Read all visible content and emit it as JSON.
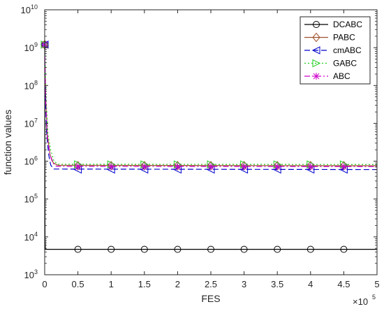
{
  "chart_data": {
    "type": "line",
    "xlabel": "FES",
    "ylabel": "function values",
    "x_multiplier_base": "×10",
    "x_multiplier_exp": "5",
    "xlim": [
      0,
      500000
    ],
    "ylim": [
      1000,
      10000000000
    ],
    "yscale": "log",
    "x_ticks": [
      0,
      50000,
      100000,
      150000,
      200000,
      250000,
      300000,
      350000,
      400000,
      450000,
      500000
    ],
    "x_tick_labels": [
      "0",
      "0.5",
      "1",
      "1.5",
      "2",
      "2.5",
      "3",
      "3.5",
      "4",
      "4.5",
      "5"
    ],
    "y_ticks": [
      1000,
      10000,
      100000,
      1000000,
      10000000,
      100000000,
      1000000000,
      10000000000
    ],
    "y_tick_exps": [
      "3",
      "4",
      "5",
      "6",
      "7",
      "8",
      "9",
      "10"
    ],
    "y_tick_base": "10",
    "legend_position": "top-right",
    "markers_x": [
      50000,
      100000,
      150000,
      200000,
      250000,
      300000,
      350000,
      400000,
      450000
    ],
    "series": [
      {
        "name": "DCABC",
        "color": "#000000",
        "dash": "solid",
        "marker": "circle",
        "x": [
          0,
          200,
          500,
          1000,
          500000
        ],
        "y": [
          1200000000,
          1000000000,
          10000,
          4700,
          4700
        ]
      },
      {
        "name": "PABC",
        "color": "#a0522d",
        "dash": "solid",
        "marker": "diamond",
        "x": [
          0,
          1500,
          4000,
          8000,
          13000,
          20000,
          500000
        ],
        "y": [
          1200000000,
          50000000,
          5000000,
          1500000,
          900000,
          780000,
          760000
        ]
      },
      {
        "name": "cmABC",
        "color": "#0000cc",
        "dash": "dashed",
        "marker": "triangle-left",
        "x": [
          0,
          1000,
          3000,
          6000,
          9000,
          13000,
          500000
        ],
        "y": [
          1200000000,
          50000000,
          5000000,
          1500000,
          800000,
          620000,
          600000
        ]
      },
      {
        "name": "GABC",
        "color": "#22cc22",
        "dash": "dotted",
        "marker": "triangle-right",
        "x": [
          0,
          2000,
          5000,
          9000,
          14000,
          20000,
          500000
        ],
        "y": [
          1200000000,
          50000000,
          5000000,
          2000000,
          1000000,
          830000,
          820000
        ]
      },
      {
        "name": "ABC",
        "color": "#cc00cc",
        "dash": "dashdot",
        "marker": "asterisk",
        "x": [
          0,
          1500,
          4000,
          8000,
          12000,
          18000,
          500000
        ],
        "y": [
          1200000000,
          40000000,
          4000000,
          1500000,
          900000,
          730000,
          720000
        ]
      }
    ]
  }
}
